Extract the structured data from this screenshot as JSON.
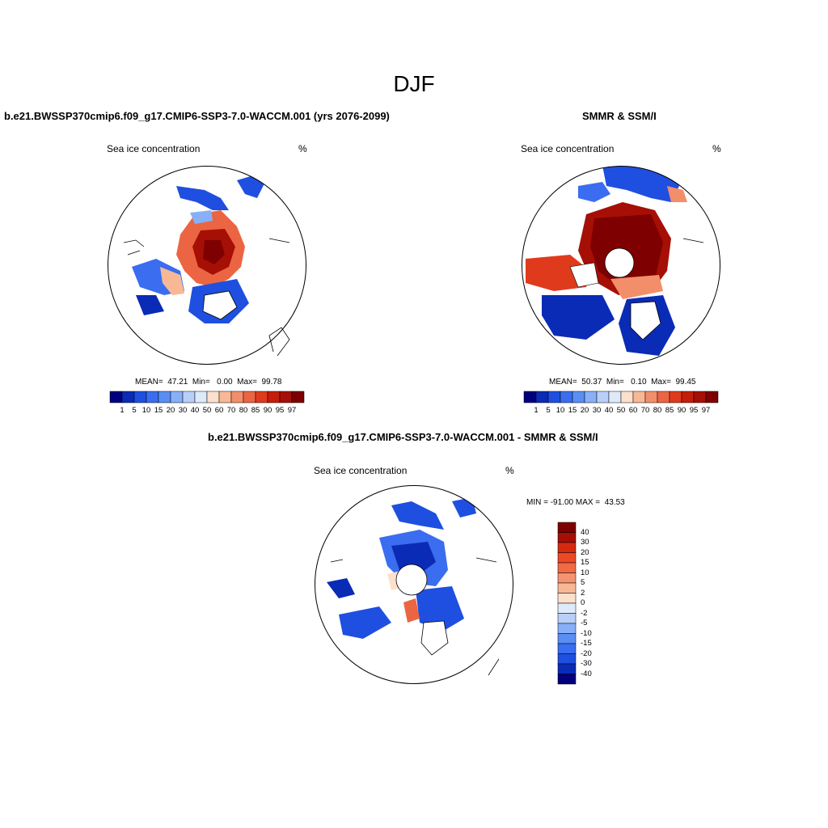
{
  "figure_title": "DJF",
  "panels": {
    "model": {
      "title": "b.e21.BWSSP370cmip6.f09_g17.CMIP6-SSP3-7.0-WACCM.001 (yrs 2076-2099)",
      "variable": "Sea ice concentration",
      "units": "%",
      "stats": "MEAN=  47.21  Min=   0.00  Max=  99.78"
    },
    "obs": {
      "title": "SMMR & SSM/I",
      "variable": "Sea ice concentration",
      "units": "%",
      "stats": "MEAN=  50.37  Min=   0.10  Max=  99.45"
    },
    "diff": {
      "title": "b.e21.BWSSP370cmip6.f09_g17.CMIP6-SSP3-7.0-WACCM.001 - SMMR & SSM/I",
      "variable": "Sea ice concentration",
      "units": "%",
      "stats": "MIN = -91.00 MAX =  43.53"
    }
  },
  "colorbar_abs": {
    "labels": [
      "1",
      "5",
      "10",
      "15",
      "20",
      "30",
      "40",
      "50",
      "60",
      "70",
      "80",
      "85",
      "90",
      "95",
      "97"
    ],
    "colors": [
      "#00007f",
      "#0a2bb5",
      "#1f4fe0",
      "#3a6df0",
      "#5a8ef5",
      "#88b0f8",
      "#b8d0f8",
      "#deeaf9",
      "#fde0cc",
      "#f8b896",
      "#f38e6a",
      "#ec6542",
      "#e03a1d",
      "#c41d0a",
      "#a60f05",
      "#7f0000"
    ]
  },
  "colorbar_diff": {
    "labels": [
      "40",
      "30",
      "20",
      "15",
      "10",
      "5",
      "2",
      "0",
      "-2",
      "-5",
      "-10",
      "-15",
      "-20",
      "-30",
      "-40"
    ],
    "colors": [
      "#7f0000",
      "#a60f05",
      "#d42a10",
      "#ec4a25",
      "#f26a45",
      "#f59370",
      "#f8b896",
      "#fde0cc",
      "#deeaf9",
      "#b8d0f8",
      "#88b0f8",
      "#5a8ef5",
      "#3a6df0",
      "#1f4fe0",
      "#0a2bb5",
      "#00007f"
    ]
  }
}
